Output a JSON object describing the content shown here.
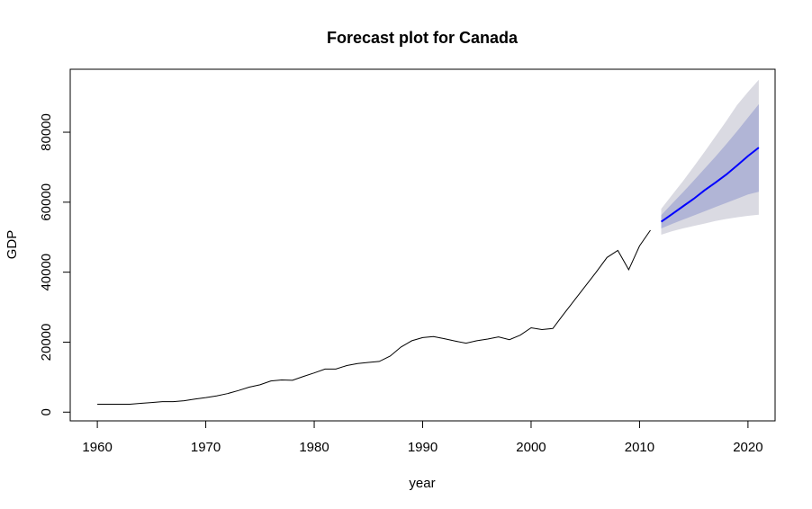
{
  "chart_data": {
    "type": "line",
    "title": "Forecast plot for Canada",
    "xlabel": "year",
    "ylabel": "GDP",
    "xlim": [
      1957.5,
      2022.5
    ],
    "ylim": [
      -2500,
      98000
    ],
    "x_ticks": [
      1960,
      1970,
      1980,
      1990,
      2000,
      2010,
      2020
    ],
    "x_tick_labels": [
      "1960",
      "1970",
      "1980",
      "1990",
      "2000",
      "2010",
      "2020"
    ],
    "y_ticks": [
      0,
      20000,
      40000,
      60000,
      80000
    ],
    "y_tick_labels": [
      "0",
      "20000",
      "40000",
      "60000",
      "80000"
    ],
    "grid": false,
    "colors": {
      "history": "#000000",
      "forecast": "#0000ff",
      "band95": "#dadae2",
      "band80": "#b1b5d6"
    },
    "series": [
      {
        "role": "history",
        "x": [
          1960,
          1961,
          1962,
          1963,
          1964,
          1965,
          1966,
          1967,
          1968,
          1969,
          1970,
          1971,
          1972,
          1973,
          1974,
          1975,
          1976,
          1977,
          1978,
          1979,
          1980,
          1981,
          1982,
          1983,
          1984,
          1985,
          1986,
          1987,
          1988,
          1989,
          1990,
          1991,
          1992,
          1993,
          1994,
          1995,
          1996,
          1997,
          1998,
          1999,
          2000,
          2001,
          2002,
          2003,
          2004,
          2005,
          2006,
          2007,
          2008,
          2009,
          2010,
          2011
        ],
        "y": [
          2250,
          2250,
          2250,
          2250,
          2500,
          2750,
          3000,
          3000,
          3250,
          3750,
          4150,
          4650,
          5300,
          6150,
          7150,
          7800,
          8900,
          9200,
          9100,
          10200,
          11200,
          12300,
          12300,
          13300,
          13900,
          14200,
          14500,
          16000,
          18600,
          20400,
          21300,
          21600,
          21000,
          20300,
          19700,
          20400,
          20900,
          21500,
          20700,
          22000,
          24100,
          23600,
          23900,
          28000,
          32000,
          36000,
          40000,
          44200,
          46200,
          40700,
          47500,
          52000
        ]
      },
      {
        "role": "forecast",
        "x": [
          2012,
          2013,
          2014,
          2015,
          2016,
          2017,
          2018,
          2019,
          2020,
          2021
        ],
        "y": [
          54400,
          56600,
          58800,
          61000,
          63400,
          65600,
          67900,
          70500,
          73200,
          75600
        ],
        "lo80": [
          52500,
          53800,
          55000,
          56200,
          57400,
          58600,
          59800,
          61000,
          62200,
          63000
        ],
        "hi80": [
          56300,
          59600,
          62800,
          66200,
          69600,
          73000,
          76600,
          80300,
          84200,
          88000
        ],
        "lo95": [
          50700,
          51700,
          52500,
          53200,
          53900,
          54600,
          55200,
          55700,
          56100,
          56400
        ],
        "hi95": [
          58100,
          62100,
          66000,
          70200,
          74400,
          78800,
          83200,
          87800,
          91500,
          95000
        ]
      }
    ]
  }
}
